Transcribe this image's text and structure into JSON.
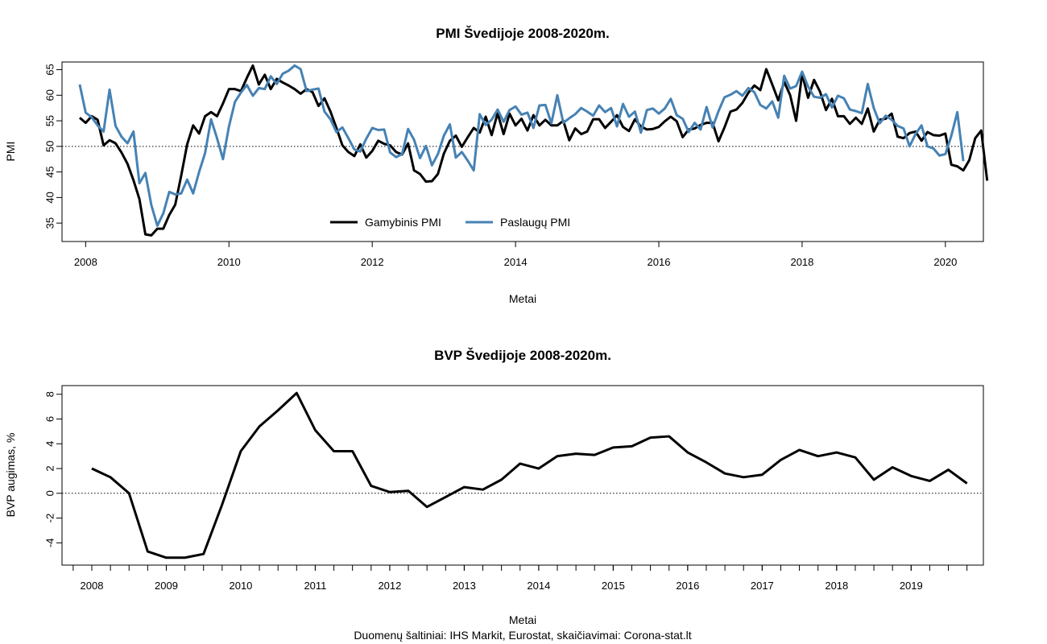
{
  "source_note": "Duomenų šaltiniai: IHS Markit, Eurostat, skaičiavimai: Corona-stat.lt",
  "colors": {
    "manufacturing": "#000000",
    "services": "#4682b4",
    "reference_line": "#000000"
  },
  "chart_data": [
    {
      "type": "line",
      "title": "PMI Švedijoje 2008-2020m.",
      "xlabel": "Metai",
      "ylabel": "PMI",
      "xlim": [
        2007.67,
        2020.53
      ],
      "ylim": [
        31.4,
        66.5
      ],
      "x_ticks": [
        2008,
        2010,
        2012,
        2014,
        2016,
        2018,
        2020
      ],
      "y_ticks": [
        35,
        40,
        45,
        50,
        55,
        60,
        65
      ],
      "reference_line": 50,
      "grid": false,
      "legend_position": "bottom-center",
      "x_start": 2007.917,
      "x_step": 0.08333,
      "series": [
        {
          "name": "Gamybinis PMI",
          "color": "#000000",
          "values": [
            55.6,
            54.6,
            55.9,
            55.2,
            50.2,
            51.2,
            50.6,
            48.8,
            46.6,
            43.4,
            39.7,
            32.8,
            32.6,
            33.9,
            33.9,
            36.6,
            38.6,
            44.3,
            50.4,
            54.1,
            52.5,
            55.9,
            56.7,
            55.9,
            58.4,
            61.2,
            61.2,
            60.8,
            63.4,
            65.8,
            62.1,
            64.0,
            61.2,
            63.2,
            62.5,
            61.9,
            61.2,
            60.3,
            61.2,
            60.6,
            57.9,
            59.4,
            56.8,
            53.6,
            50.2,
            48.9,
            48.1,
            50.4,
            47.8,
            49.1,
            51.1,
            50.5,
            50.2,
            48.9,
            48.4,
            50.6,
            45.3,
            44.6,
            43.1,
            43.2,
            44.6,
            48.6,
            51.1,
            52.1,
            49.9,
            51.8,
            53.6,
            52.7,
            55.8,
            52.2,
            56.5,
            52.4,
            56.4,
            54.1,
            55.4,
            53.1,
            56.1,
            54.1,
            55.2,
            54.1,
            54.1,
            55.0,
            51.2,
            53.5,
            52.4,
            52.9,
            55.3,
            55.3,
            53.6,
            54.8,
            56.1,
            53.8,
            53.0,
            55.3,
            53.9,
            53.3,
            53.4,
            53.8,
            54.9,
            55.8,
            54.9,
            51.8,
            53.3,
            53.5,
            54.2,
            54.6,
            54.6,
            51.0,
            53.7,
            56.8,
            57.2,
            58.5,
            60.5,
            61.9,
            61.0,
            65.1,
            62.1,
            59.0,
            62.6,
            60.0,
            55.0,
            64.2,
            59.5,
            63.0,
            60.7,
            57.1,
            59.3,
            55.9,
            55.9,
            54.4,
            55.6,
            54.4,
            57.4,
            52.9,
            55.2,
            55.4,
            56.4,
            51.9,
            51.6,
            52.6,
            52.9,
            51.1,
            52.8,
            52.2,
            52.1,
            52.5,
            46.4,
            46.1,
            45.3,
            47.3,
            51.6,
            53.1,
            43.3
          ]
        },
        {
          "name": "Paslaugų PMI",
          "color": "#4682b4",
          "values": [
            62.1,
            56.6,
            55.7,
            54.1,
            52.9,
            61.1,
            54.0,
            51.9,
            50.6,
            52.9,
            42.8,
            44.8,
            38.5,
            34.5,
            36.9,
            41.1,
            40.6,
            40.8,
            43.5,
            40.8,
            45.0,
            48.7,
            55.3,
            51.6,
            47.5,
            53.9,
            58.7,
            60.5,
            62.0,
            59.9,
            61.4,
            61.2,
            63.7,
            62.2,
            64.2,
            64.8,
            65.8,
            65.1,
            60.8,
            61.1,
            61.3,
            56.8,
            55.3,
            52.8,
            53.7,
            51.6,
            49.4,
            49.0,
            51.5,
            53.6,
            53.2,
            53.3,
            48.8,
            47.9,
            48.5,
            53.4,
            51.3,
            47.7,
            50.1,
            46.3,
            48.5,
            52.1,
            54.3,
            47.8,
            48.9,
            47.2,
            45.3,
            56.3,
            54.2,
            55.2,
            57.2,
            54.8,
            57.1,
            57.8,
            56.2,
            56.6,
            53.6,
            58.0,
            58.1,
            54.5,
            60.0,
            54.6,
            55.5,
            56.3,
            57.5,
            56.8,
            56.0,
            58.0,
            56.7,
            57.5,
            53.9,
            58.3,
            55.8,
            56.8,
            52.7,
            57.1,
            57.4,
            56.4,
            57.4,
            59.3,
            56.1,
            55.4,
            52.8,
            54.6,
            53.3,
            57.7,
            53.7,
            56.9,
            59.6,
            60.1,
            60.8,
            59.9,
            61.4,
            60.6,
            58.1,
            57.4,
            58.8,
            55.6,
            63.8,
            61.3,
            61.8,
            64.6,
            61.7,
            59.7,
            59.5,
            60.2,
            57.6,
            59.9,
            59.4,
            57.2,
            56.9,
            56.5,
            62.2,
            57.5,
            54.5,
            56.0,
            55.2,
            54.0,
            53.5,
            50.0,
            52.4,
            54.1,
            50.0,
            49.6,
            48.2,
            48.5,
            52.1,
            56.7,
            47.1
          ]
        }
      ]
    },
    {
      "type": "line",
      "title": "BVP Švedijoje 2008-2020m.",
      "xlabel": "Metai",
      "ylabel": "BVP augimas, %",
      "xlim": [
        2007.6,
        2019.97
      ],
      "ylim": [
        -5.8,
        8.7
      ],
      "x_ticks": [
        2008,
        2009,
        2010,
        2011,
        2012,
        2013,
        2014,
        2015,
        2016,
        2017,
        2018,
        2019
      ],
      "y_ticks": [
        -4,
        -2,
        0,
        2,
        4,
        6,
        8
      ],
      "reference_line": 0,
      "grid": false,
      "x_start": 2008.0,
      "x_step": 0.25,
      "series": [
        {
          "color": "#000000",
          "values": [
            2.0,
            1.3,
            0.0,
            -4.7,
            -5.2,
            -5.2,
            -4.9,
            -0.9,
            3.4,
            5.4,
            6.7,
            8.1,
            5.1,
            3.4,
            3.4,
            0.6,
            0.1,
            0.2,
            -1.1,
            -0.3,
            0.5,
            0.3,
            1.1,
            2.4,
            2.0,
            3.0,
            3.2,
            3.1,
            3.7,
            3.8,
            4.5,
            4.6,
            3.3,
            2.5,
            1.6,
            1.3,
            1.5,
            2.7,
            3.5,
            3.0,
            3.3,
            2.9,
            1.1,
            2.1,
            1.4,
            1.0,
            1.9,
            0.8
          ]
        }
      ]
    }
  ]
}
